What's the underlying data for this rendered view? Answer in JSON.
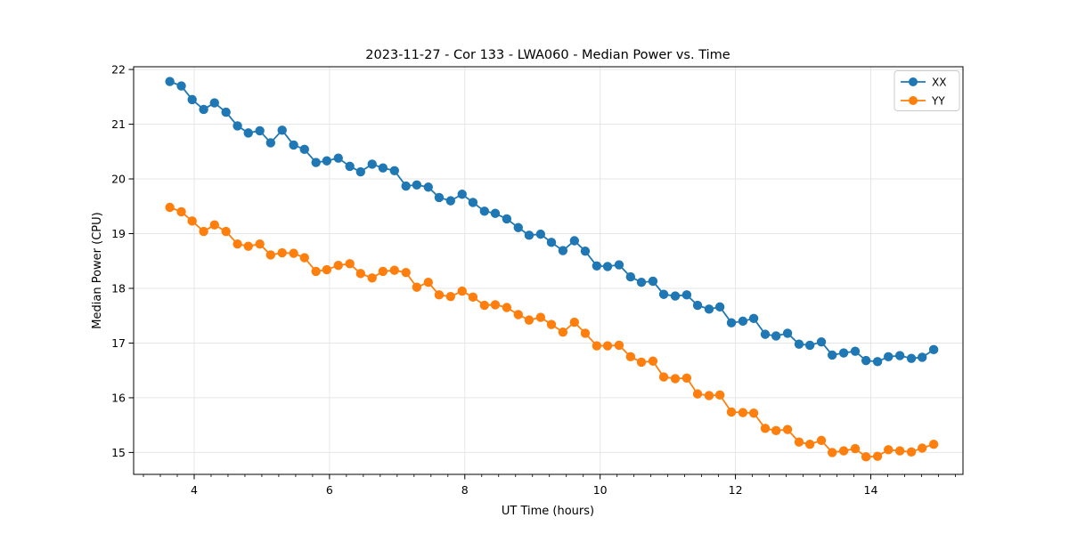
{
  "chart_data": {
    "type": "line",
    "title": "2023-11-27 - Cor 133 - LWA060 - Median Power vs. Time",
    "xlabel": "UT Time (hours)",
    "ylabel": "Median Power (CPU)",
    "xlim": [
      3.105,
      15.363
    ],
    "ylim": [
      14.6,
      22.05
    ],
    "xticks": [
      4,
      6,
      8,
      10,
      12,
      14
    ],
    "yticks": [
      15,
      16,
      17,
      18,
      19,
      20,
      21,
      22
    ],
    "x_minor_step": 0.25,
    "grid": true,
    "grid_color": "#e6e6e6",
    "spine_color": "#000000",
    "marker": "circle",
    "legend": {
      "position": "upper right",
      "entries": [
        "XX",
        "YY"
      ]
    },
    "x": [
      3.64,
      3.81,
      3.97,
      4.14,
      4.3,
      4.47,
      4.64,
      4.8,
      4.97,
      5.13,
      5.3,
      5.47,
      5.63,
      5.8,
      5.96,
      6.13,
      6.3,
      6.46,
      6.63,
      6.79,
      6.96,
      7.13,
      7.29,
      7.46,
      7.62,
      7.79,
      7.96,
      8.12,
      8.29,
      8.45,
      8.62,
      8.79,
      8.95,
      9.12,
      9.28,
      9.45,
      9.62,
      9.78,
      9.95,
      10.11,
      10.28,
      10.45,
      10.61,
      10.78,
      10.94,
      11.11,
      11.28,
      11.44,
      11.61,
      11.77,
      11.94,
      12.11,
      12.27,
      12.44,
      12.6,
      12.77,
      12.94,
      13.1,
      13.27,
      13.43,
      13.6,
      13.77,
      13.93,
      14.1,
      14.26,
      14.43,
      14.6,
      14.76,
      14.93
    ],
    "series": [
      {
        "name": "XX",
        "color": "#1f77b4",
        "values": [
          21.78,
          21.7,
          21.45,
          21.27,
          21.39,
          21.22,
          20.97,
          20.84,
          20.88,
          20.66,
          20.89,
          20.62,
          20.54,
          20.3,
          20.33,
          20.38,
          20.23,
          20.13,
          20.27,
          20.2,
          20.15,
          19.87,
          19.89,
          19.85,
          19.66,
          19.6,
          19.72,
          19.57,
          19.41,
          19.37,
          19.27,
          19.11,
          18.97,
          18.99,
          18.84,
          18.69,
          18.87,
          18.68,
          18.41,
          18.4,
          18.43,
          18.21,
          18.11,
          18.13,
          17.89,
          17.86,
          17.88,
          17.69,
          17.62,
          17.66,
          17.37,
          17.4,
          17.45,
          17.16,
          17.13,
          17.18,
          16.98,
          16.96,
          17.02,
          16.78,
          16.82,
          16.85,
          16.68,
          16.66,
          16.75,
          16.77,
          16.72,
          16.74,
          16.88
        ]
      },
      {
        "name": "YY",
        "color": "#ff7f0e",
        "values": [
          19.48,
          19.4,
          19.23,
          19.04,
          19.16,
          19.04,
          18.81,
          18.77,
          18.81,
          18.61,
          18.65,
          18.64,
          18.56,
          18.31,
          18.34,
          18.42,
          18.45,
          18.27,
          18.19,
          18.31,
          18.33,
          18.29,
          18.02,
          18.11,
          17.88,
          17.85,
          17.95,
          17.84,
          17.69,
          17.7,
          17.65,
          17.52,
          17.42,
          17.47,
          17.34,
          17.2,
          17.38,
          17.18,
          16.95,
          16.95,
          16.96,
          16.75,
          16.65,
          16.67,
          16.38,
          16.35,
          16.36,
          16.07,
          16.04,
          16.05,
          15.74,
          15.73,
          15.72,
          15.44,
          15.4,
          15.42,
          15.19,
          15.15,
          15.22,
          15.0,
          15.03,
          15.07,
          14.92,
          14.93,
          15.05,
          15.03,
          15.01,
          15.08,
          15.15
        ]
      }
    ]
  }
}
